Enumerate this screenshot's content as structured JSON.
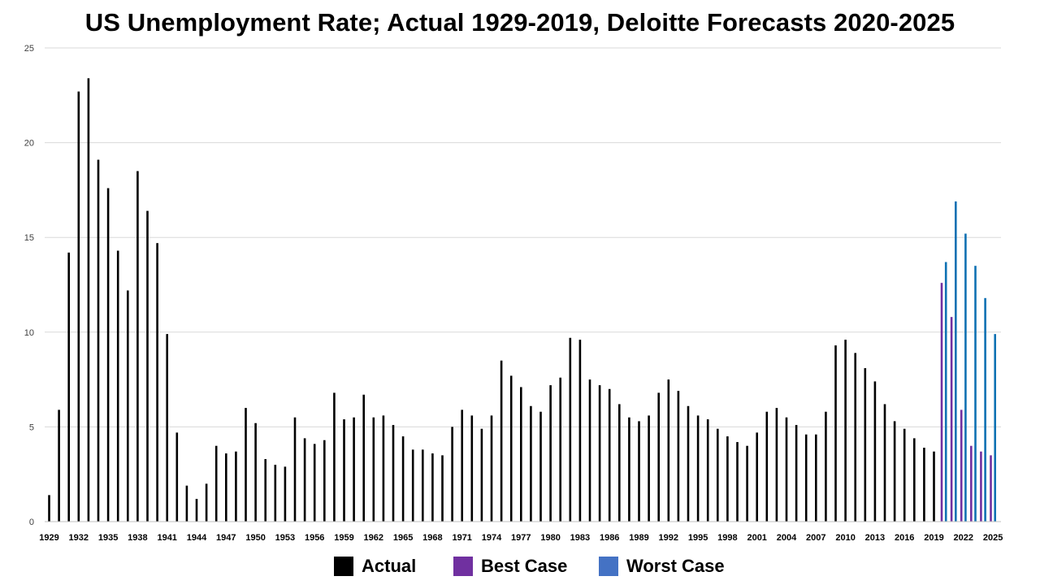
{
  "chart_data": {
    "type": "bar",
    "title": "US Unemployment Rate; Actual 1929-2019, Deloitte Forecasts 2020-2025",
    "xlabel": "",
    "ylabel": "",
    "ylim": [
      0,
      25
    ],
    "yticks": [
      "0",
      "5",
      "10",
      "15",
      "20",
      "25"
    ],
    "grid": true,
    "legend_position": "bottom",
    "x_tick_labels": [
      "1929",
      "1932",
      "1935",
      "1938",
      "1941",
      "1944",
      "1947",
      "1950",
      "1953",
      "1956",
      "1959",
      "1962",
      "1965",
      "1968",
      "1971",
      "1974",
      "1977",
      "1980",
      "1983",
      "1986",
      "1989",
      "1992",
      "1995",
      "1998",
      "2001",
      "2004",
      "2007",
      "2010",
      "2013",
      "2016",
      "2019",
      "2022",
      "2025"
    ],
    "years": [
      1929,
      1930,
      1931,
      1932,
      1933,
      1934,
      1935,
      1936,
      1937,
      1938,
      1939,
      1940,
      1941,
      1942,
      1943,
      1944,
      1945,
      1946,
      1947,
      1948,
      1949,
      1950,
      1951,
      1952,
      1953,
      1954,
      1955,
      1956,
      1957,
      1958,
      1959,
      1960,
      1961,
      1962,
      1963,
      1964,
      1965,
      1966,
      1967,
      1968,
      1969,
      1970,
      1971,
      1972,
      1973,
      1974,
      1975,
      1976,
      1977,
      1978,
      1979,
      1980,
      1981,
      1982,
      1983,
      1984,
      1985,
      1986,
      1987,
      1988,
      1989,
      1990,
      1991,
      1992,
      1993,
      1994,
      1995,
      1996,
      1997,
      1998,
      1999,
      2000,
      2001,
      2002,
      2003,
      2004,
      2005,
      2006,
      2007,
      2008,
      2009,
      2010,
      2011,
      2012,
      2013,
      2014,
      2015,
      2016,
      2017,
      2018,
      2019,
      2020,
      2021,
      2022,
      2023,
      2024,
      2025
    ],
    "series": [
      {
        "name": "Actual",
        "color": "#000000",
        "start_year": 1929,
        "values": [
          1.4,
          5.9,
          14.2,
          22.7,
          23.4,
          19.1,
          17.6,
          14.3,
          12.2,
          18.5,
          16.4,
          14.7,
          9.9,
          4.7,
          1.9,
          1.2,
          2.0,
          4.0,
          3.6,
          3.7,
          6.0,
          5.2,
          3.3,
          3.0,
          2.9,
          5.5,
          4.4,
          4.1,
          4.3,
          6.8,
          5.4,
          5.5,
          6.7,
          5.5,
          5.6,
          5.1,
          4.5,
          3.8,
          3.8,
          3.6,
          3.5,
          5.0,
          5.9,
          5.6,
          4.9,
          5.6,
          8.5,
          7.7,
          7.1,
          6.1,
          5.8,
          7.2,
          7.6,
          9.7,
          9.6,
          7.5,
          7.2,
          7.0,
          6.2,
          5.5,
          5.3,
          5.6,
          6.8,
          7.5,
          6.9,
          6.1,
          5.6,
          5.4,
          4.9,
          4.5,
          4.2,
          4.0,
          4.7,
          5.8,
          6.0,
          5.5,
          5.1,
          4.6,
          4.6,
          5.8,
          9.3,
          9.6,
          8.9,
          8.1,
          7.4,
          6.2,
          5.3,
          4.9,
          4.4,
          3.9,
          3.7
        ]
      },
      {
        "name": "Best Case",
        "color": "#7030A0",
        "start_year": 2020,
        "values": [
          12.6,
          10.8,
          5.9,
          4.0,
          3.7,
          3.5
        ]
      },
      {
        "name": "Worst Case",
        "color": "#4472C4",
        "start_year": 2020,
        "values": [
          13.7,
          16.9,
          15.2,
          13.5,
          11.8,
          9.9
        ]
      }
    ]
  }
}
